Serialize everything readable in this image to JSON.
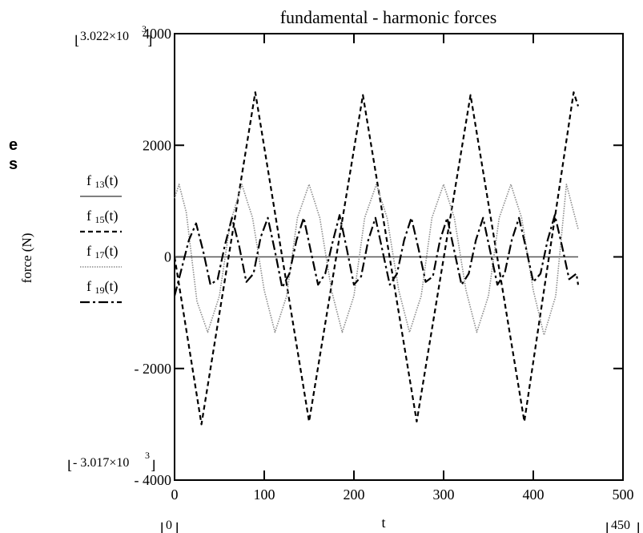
{
  "chart_data": {
    "type": "line",
    "title": "fundamental - harmonic forces",
    "xlabel": "t",
    "ylabel": "force (N)",
    "xlim": [
      0,
      500
    ],
    "ylim": [
      -4000,
      4000
    ],
    "x_ticks": [
      "0",
      "100",
      "200",
      "300",
      "400",
      "500"
    ],
    "y_ticks": [
      "- 4000",
      "- 2000",
      "0",
      "2000",
      "4000"
    ],
    "y_tick_values": [
      -4000,
      -2000,
      0,
      2000,
      4000
    ],
    "x_tick_values": [
      0,
      100,
      200,
      300,
      400,
      500
    ],
    "range_labels": {
      "ymax": "3.022×10",
      "ymax_exp": "3",
      "ymin": "- 3.017×10",
      "ymin_exp": "3",
      "xmin": "0",
      "xmax": "450"
    },
    "side_letters": [
      "e",
      "s"
    ],
    "legend": [
      {
        "prefix": "f",
        "sub": "13",
        "suffix": "(t)",
        "style": "solid"
      },
      {
        "prefix": "f",
        "sub": "15",
        "suffix": "(t)",
        "style": "dashed"
      },
      {
        "prefix": "f",
        "sub": "17",
        "suffix": "(t)",
        "style": "dotted-gray"
      },
      {
        "prefix": "f",
        "sub": "19",
        "suffix": "(t)",
        "style": "dash-dot"
      }
    ],
    "series": [
      {
        "name": "f 13(t)",
        "x": [
          0,
          450
        ],
        "y": [
          0,
          0
        ]
      },
      {
        "name": "f 15(t)",
        "x": [
          0,
          30,
          90,
          150,
          210,
          270,
          330,
          390,
          445,
          450
        ],
        "y": [
          0,
          -3000,
          2950,
          -2950,
          2900,
          -2950,
          2900,
          -2950,
          2950,
          2700
        ]
      },
      {
        "name": "f 17(t)",
        "x": [
          0,
          5,
          13,
          25,
          37,
          50,
          62,
          75,
          87,
          100,
          112,
          125,
          137,
          150,
          162,
          175,
          187,
          200,
          212,
          225,
          237,
          250,
          262,
          275,
          287,
          300,
          312,
          325,
          337,
          350,
          362,
          375,
          387,
          400,
          412,
          425,
          437,
          450
        ],
        "y": [
          1050,
          1300,
          800,
          -800,
          -1350,
          -700,
          600,
          1300,
          700,
          -600,
          -1350,
          -700,
          700,
          1300,
          700,
          -600,
          -1350,
          -700,
          700,
          1300,
          700,
          -600,
          -1350,
          -700,
          700,
          1300,
          700,
          -600,
          -1350,
          -700,
          700,
          1300,
          700,
          -600,
          -1400,
          -700,
          1300,
          500
        ]
      },
      {
        "name": "f 19(t)",
        "x": [
          0,
          8,
          16,
          24,
          32,
          40,
          48,
          56,
          64,
          72,
          80,
          88,
          96,
          104,
          112,
          120,
          128,
          136,
          144,
          152,
          160,
          168,
          176,
          184,
          192,
          200,
          208,
          216,
          224,
          232,
          240,
          248,
          256,
          264,
          272,
          280,
          288,
          296,
          304,
          312,
          320,
          328,
          336,
          344,
          352,
          360,
          368,
          376,
          384,
          392,
          400,
          408,
          416,
          424,
          432,
          440,
          448,
          450
        ],
        "y": [
          -700,
          -200,
          300,
          600,
          100,
          -500,
          -400,
          200,
          700,
          200,
          -450,
          -300,
          350,
          700,
          100,
          -550,
          -300,
          300,
          700,
          100,
          -500,
          -300,
          250,
          750,
          150,
          -500,
          -350,
          300,
          700,
          100,
          -500,
          -300,
          300,
          700,
          150,
          -450,
          -350,
          300,
          700,
          100,
          -500,
          -300,
          300,
          700,
          100,
          -500,
          -300,
          300,
          700,
          150,
          -450,
          -300,
          300,
          750,
          200,
          -400,
          -300,
          -500
        ]
      }
    ]
  }
}
